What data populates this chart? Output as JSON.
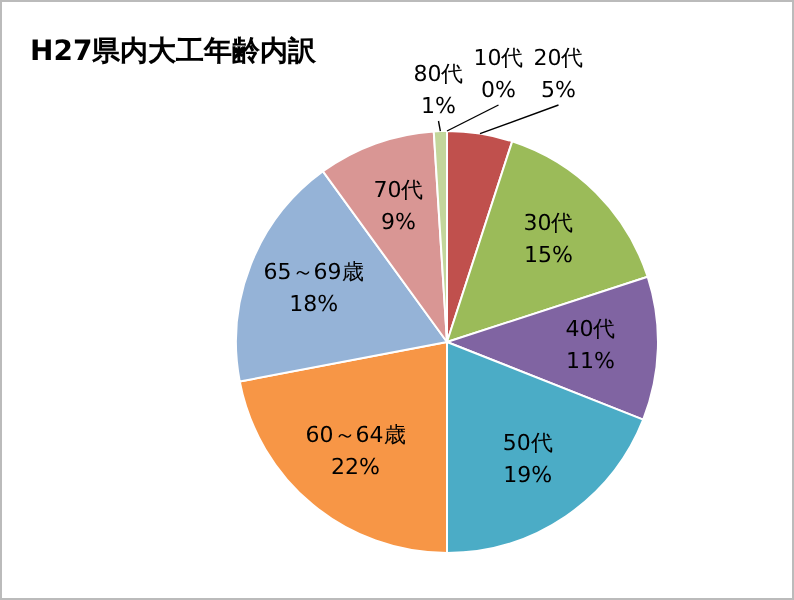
{
  "chart_data": {
    "type": "pie",
    "title": "H27県内大工年齢内訳",
    "categories": [
      "10代",
      "20代",
      "30代",
      "40代",
      "50代",
      "60～64歳",
      "65～69歳",
      "70代",
      "80代"
    ],
    "values": [
      0,
      5,
      15,
      11,
      19,
      22,
      18,
      9,
      1
    ],
    "value_labels": [
      "0%",
      "5%",
      "15%",
      "11%",
      "19%",
      "22%",
      "18%",
      "9%",
      "1%"
    ],
    "colors": [
      "#4f81bd",
      "#c0504d",
      "#9bbb59",
      "#8064a2",
      "#4bacc6",
      "#f79646",
      "#95b3d7",
      "#d99694",
      "#c3d69b"
    ],
    "legend": false
  }
}
